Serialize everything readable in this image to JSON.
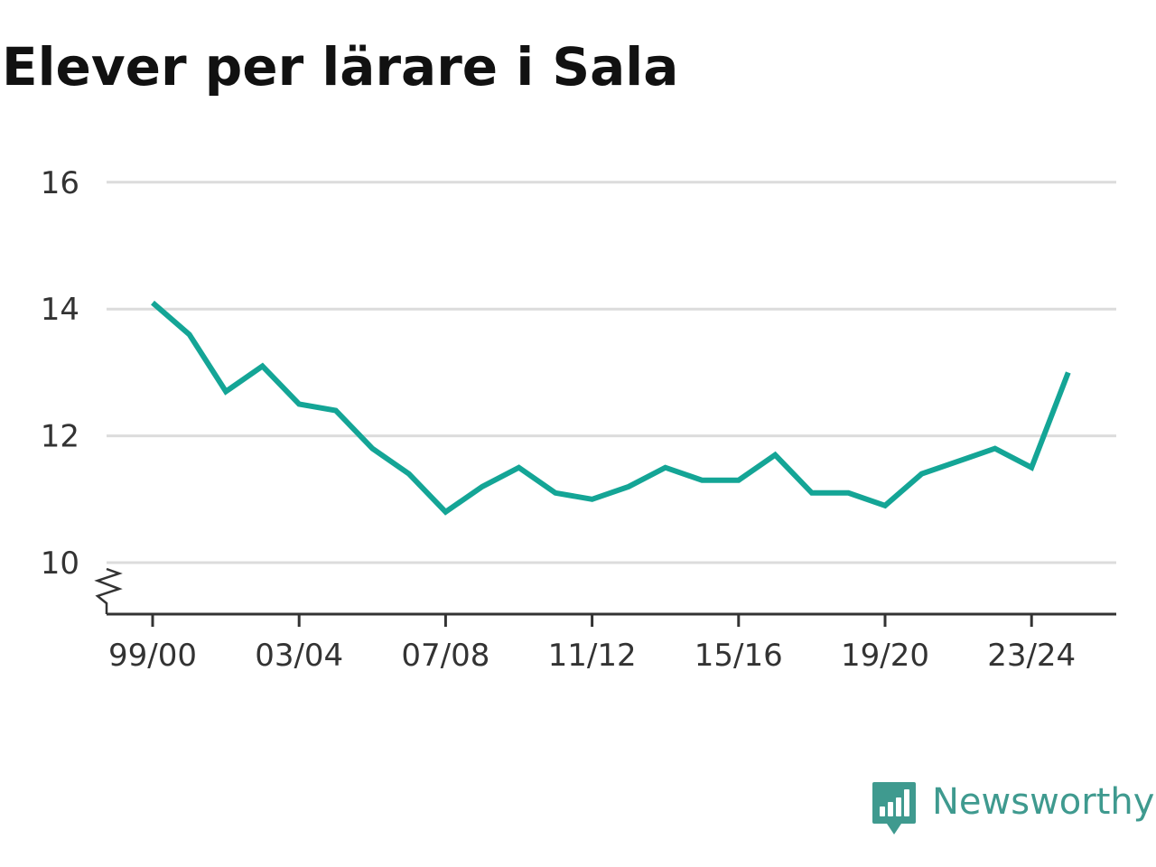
{
  "title": "Elever per lärare i Sala",
  "brand": {
    "name": "Newsworthy",
    "icon": "newsworthy-logo-icon",
    "color": "#3f9a8f"
  },
  "chart_data": {
    "type": "line",
    "title": "Elever per lärare i Sala",
    "xlabel": "",
    "ylabel": "",
    "x": [
      "99/00",
      "00/01",
      "01/02",
      "02/03",
      "03/04",
      "04/05",
      "05/06",
      "06/07",
      "07/08",
      "08/09",
      "09/10",
      "10/11",
      "11/12",
      "12/13",
      "13/14",
      "14/15",
      "15/16",
      "16/17",
      "17/18",
      "18/19",
      "19/20",
      "20/21",
      "21/22",
      "22/23",
      "23/24",
      "24/25"
    ],
    "x_tick_labels": [
      "99/00",
      "03/04",
      "07/08",
      "11/12",
      "15/16",
      "19/20",
      "23/24"
    ],
    "y_tick_labels": [
      "10",
      "12",
      "14",
      "16"
    ],
    "y_ticks": [
      10,
      12,
      14,
      16
    ],
    "ylim": [
      9.2,
      16
    ],
    "axis_break": true,
    "grid": true,
    "series": [
      {
        "color": "#14a596",
        "values": [
          14.1,
          13.6,
          12.7,
          13.1,
          12.5,
          12.4,
          11.8,
          11.4,
          10.8,
          11.2,
          11.5,
          11.1,
          11.0,
          11.2,
          11.5,
          11.3,
          11.3,
          11.7,
          11.1,
          11.1,
          10.9,
          11.4,
          11.6,
          11.8,
          11.5,
          13.0
        ]
      }
    ]
  }
}
